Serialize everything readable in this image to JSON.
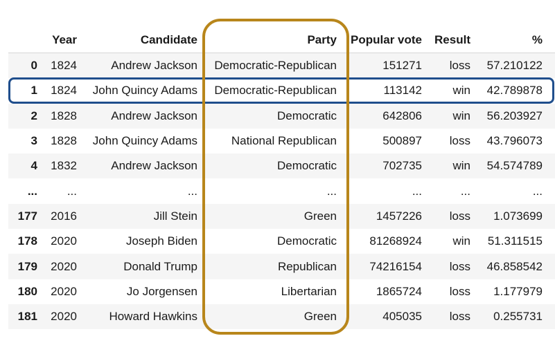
{
  "columns": {
    "index": "",
    "year": "Year",
    "candidate": "Candidate",
    "party": "Party",
    "popular_vote": "Popular vote",
    "result": "Result",
    "pct": "%"
  },
  "rows": [
    {
      "index": "0",
      "year": "1824",
      "candidate": "Andrew Jackson",
      "party": "Democratic-Republican",
      "popular_vote": "151271",
      "result": "loss",
      "pct": "57.210122"
    },
    {
      "index": "1",
      "year": "1824",
      "candidate": "John Quincy Adams",
      "party": "Democratic-Republican",
      "popular_vote": "113142",
      "result": "win",
      "pct": "42.789878"
    },
    {
      "index": "2",
      "year": "1828",
      "candidate": "Andrew Jackson",
      "party": "Democratic",
      "popular_vote": "642806",
      "result": "win",
      "pct": "56.203927"
    },
    {
      "index": "3",
      "year": "1828",
      "candidate": "John Quincy Adams",
      "party": "National Republican",
      "popular_vote": "500897",
      "result": "loss",
      "pct": "43.796073"
    },
    {
      "index": "4",
      "year": "1832",
      "candidate": "Andrew Jackson",
      "party": "Democratic",
      "popular_vote": "702735",
      "result": "win",
      "pct": "54.574789"
    },
    {
      "index": "...",
      "year": "...",
      "candidate": "...",
      "party": "...",
      "popular_vote": "...",
      "result": "...",
      "pct": "..."
    },
    {
      "index": "177",
      "year": "2016",
      "candidate": "Jill Stein",
      "party": "Green",
      "popular_vote": "1457226",
      "result": "loss",
      "pct": "1.073699"
    },
    {
      "index": "178",
      "year": "2020",
      "candidate": "Joseph Biden",
      "party": "Democratic",
      "popular_vote": "81268924",
      "result": "win",
      "pct": "51.311515"
    },
    {
      "index": "179",
      "year": "2020",
      "candidate": "Donald Trump",
      "party": "Republican",
      "popular_vote": "74216154",
      "result": "loss",
      "pct": "46.858542"
    },
    {
      "index": "180",
      "year": "2020",
      "candidate": "Jo Jorgensen",
      "party": "Libertarian",
      "popular_vote": "1865724",
      "result": "loss",
      "pct": "1.177979"
    },
    {
      "index": "181",
      "year": "2020",
      "candidate": "Howard Hawkins",
      "party": "Green",
      "popular_vote": "405035",
      "result": "loss",
      "pct": "0.255731"
    }
  ],
  "highlights": {
    "row_color": "#1f4e8c",
    "column_color": "#b8861b"
  }
}
